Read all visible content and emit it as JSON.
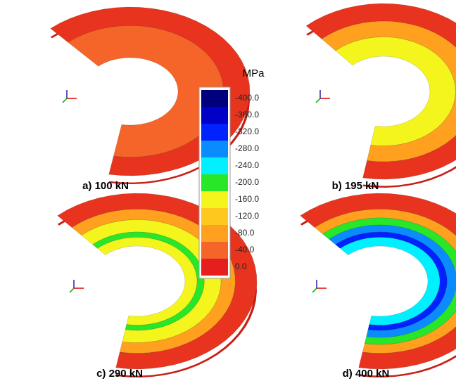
{
  "colorbar": {
    "unit": "MPa",
    "levels": [
      {
        "label": "-400.0",
        "color": "#00007f"
      },
      {
        "label": "-360.0",
        "color": "#0000c8"
      },
      {
        "label": "-320.0",
        "color": "#0022ff"
      },
      {
        "label": "-280.0",
        "color": "#0a8cff"
      },
      {
        "label": "-240.0",
        "color": "#00f0ff"
      },
      {
        "label": "-200.0",
        "color": "#28e628"
      },
      {
        "label": "-160.0",
        "color": "#f5f51e"
      },
      {
        "label": "-120.0",
        "color": "#ffc81e"
      },
      {
        "label": "-80.0",
        "color": "#ffa01e"
      },
      {
        "label": "-40.0",
        "color": "#f56428"
      },
      {
        "label": "0.0",
        "color": "#e61e1e"
      }
    ]
  },
  "panels": [
    {
      "caption": "a) 100 kN"
    },
    {
      "caption": "b) 195 kN"
    },
    {
      "caption": "c) 290 kN"
    },
    {
      "caption": "d) 400 kN"
    }
  ]
}
